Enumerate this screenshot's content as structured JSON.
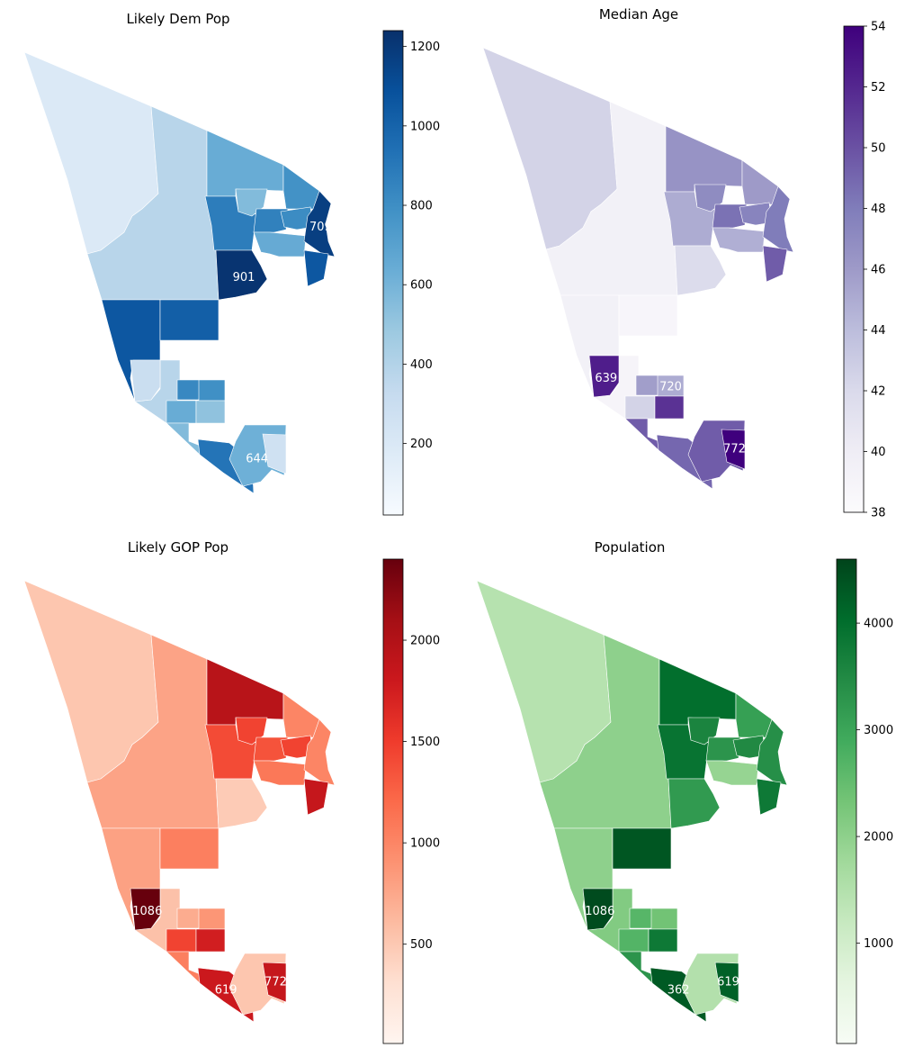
{
  "panels": [
    {
      "key": "dem",
      "title": "Likely Dem Pop",
      "colormap": [
        "#f7fbff",
        "#deebf7",
        "#c6dbef",
        "#9ecae1",
        "#6baed6",
        "#4292c6",
        "#2171b5",
        "#08519c",
        "#08306b"
      ],
      "scale": {
        "min": 20,
        "max": 1240,
        "ticks": [
          200,
          400,
          600,
          800,
          1000,
          1200
        ]
      },
      "values": [
        190,
        380,
        640,
        780,
        880,
        1060,
        1220,
        560,
        860,
        650,
        810,
        1170,
        1060,
        380,
        1020,
        830,
        790,
        300,
        640,
        520,
        560,
        920,
        620,
        270
      ],
      "annotations": [
        {
          "text": "901",
          "region": 6
        },
        {
          "text": "709",
          "region": 11
        },
        {
          "text": "644",
          "region": 22
        }
      ]
    },
    {
      "key": "age",
      "title": "Median Age",
      "colormap": [
        "#fcfbfd",
        "#efedf5",
        "#dadaeb",
        "#bcbddc",
        "#9e9ac8",
        "#807dba",
        "#6a51a3",
        "#54278f",
        "#3f007d"
      ],
      "scale": {
        "min": 38,
        "max": 54,
        "ticks": [
          38,
          40,
          42,
          44,
          46,
          48,
          50,
          52,
          54
        ]
      },
      "values": [
        42.5,
        39.5,
        46.5,
        46.0,
        45.0,
        39.5,
        41.8,
        47.0,
        48.5,
        44.8,
        47.5,
        48.0,
        49.5,
        39.0,
        38.8,
        45.8,
        45.0,
        52.5,
        42.5,
        51.5,
        49.5,
        49.0,
        49.5,
        54.0
      ],
      "annotations": [
        {
          "text": "639",
          "region": 17
        },
        {
          "text": "720",
          "region": 16
        },
        {
          "text": "772",
          "region": 23
        }
      ]
    },
    {
      "key": "gop",
      "title": "Likely GOP Pop",
      "colormap": [
        "#fff5f0",
        "#fee0d2",
        "#fcbba1",
        "#fc9272",
        "#fb6a4a",
        "#ef3b2c",
        "#cb181d",
        "#a50f15",
        "#67000d"
      ],
      "scale": {
        "min": 10,
        "max": 2400,
        "ticks": [
          500,
          1000,
          1500,
          2000
        ]
      },
      "values": [
        520,
        780,
        1950,
        1000,
        1400,
        800,
        480,
        1450,
        1350,
        1100,
        1450,
        1000,
        1850,
        560,
        1050,
        720,
        880,
        2400,
        1450,
        1750,
        1050,
        1800,
        520,
        1850
      ],
      "annotations": [
        {
          "text": "1086",
          "region": 17
        },
        {
          "text": "619",
          "region": 21
        },
        {
          "text": "772",
          "region": 23
        }
      ]
    },
    {
      "key": "pop",
      "title": "Population",
      "colormap": [
        "#f7fcf5",
        "#e5f5e0",
        "#c7e9c0",
        "#a1d99b",
        "#74c476",
        "#41ab5d",
        "#238b45",
        "#006d2c",
        "#00441b"
      ],
      "scale": {
        "min": 60,
        "max": 4600,
        "ticks": [
          1000,
          2000,
          3000,
          4000
        ]
      },
      "values": [
        1450,
        2000,
        4000,
        3100,
        3900,
        2000,
        3200,
        3600,
        3300,
        1900,
        3500,
        3400,
        3800,
        2150,
        4350,
        2650,
        2350,
        4500,
        2700,
        3800,
        3300,
        4300,
        1500,
        4200
      ],
      "annotations": [
        {
          "text": "1086",
          "region": 17
        },
        {
          "text": "362",
          "region": 21
        },
        {
          "text": "619",
          "region": 23
        }
      ]
    }
  ]
}
